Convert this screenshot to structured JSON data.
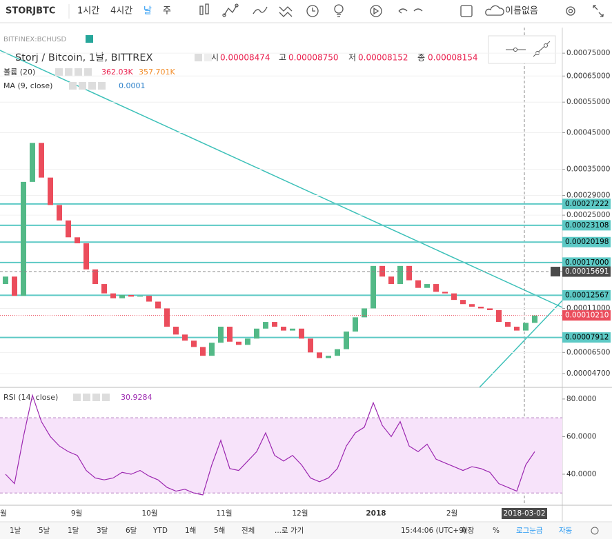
{
  "toolbar": {
    "symbol": "STORJBTC",
    "intervals": [
      "1시간",
      "4시간",
      "날",
      "주"
    ],
    "layout_name": "이름없음"
  },
  "chart": {
    "type": "candlestick",
    "compare_symbol": "BITFINEX:BCHUSD",
    "legend": {
      "title": "Storj / Bitcoin, 1날, BITTREX",
      "open_label": "시",
      "open": {
        "value": 8.474e-05,
        "label": "0.00008474"
      },
      "high_label": "고",
      "high": {
        "value": 8.75e-05,
        "label": "0.00008750"
      },
      "low_label": "저",
      "low": {
        "value": 8.152e-05,
        "label": "0.00008152"
      },
      "close_label": "종",
      "close": {
        "value": 8.154e-05,
        "label": "0.00008154"
      }
    },
    "volume": {
      "name": "볼륨 (20)",
      "value": {
        "value": 362030,
        "label": "362.03K"
      },
      "ma": {
        "value": 357701,
        "label": "357.701K"
      }
    },
    "ma": {
      "name": "MA (9, close)",
      "value": 0.0001
    },
    "open": [
      0.00014,
      0.00015,
      0.000125,
      0.00032,
      0.00042,
      0.00033,
      0.00027,
      0.00024,
      0.00021,
      0.0002,
      0.00016,
      0.00014,
      0.000128,
      0.000122,
      0.000126,
      0.000124,
      0.000125,
      0.000118,
      0.00011,
      9e-05,
      8.2e-05,
      7.6e-05,
      7e-05,
      6.2e-05,
      7.4e-05,
      9e-05,
      7.5e-05,
      7.2e-05,
      7.8e-05,
      8.8e-05,
      9.5e-05,
      9e-05,
      8.6e-05,
      8.8e-05,
      7.8e-05,
      6.5e-05,
      6e-05,
      6.2e-05,
      6.8e-05,
      8.5e-05,
      0.0001,
      0.00011,
      0.000165,
      0.00015,
      0.00014,
      0.000165,
      0.000145,
      0.000135,
      0.00014,
      0.00013,
      0.000128,
      0.00012,
      0.000115,
      0.000112,
      0.00011,
      0.000108,
      9.5e-05,
      9e-05,
      8.6e-05,
      9.4e-05
    ],
    "close": [
      0.00015,
      0.000125,
      0.00032,
      0.00042,
      0.00033,
      0.00027,
      0.00024,
      0.00021,
      0.0002,
      0.00016,
      0.00014,
      0.000128,
      0.000122,
      0.000126,
      0.000124,
      0.000125,
      0.000118,
      0.00011,
      9e-05,
      8.2e-05,
      7.6e-05,
      7e-05,
      6.2e-05,
      7.4e-05,
      9e-05,
      7.5e-05,
      7.2e-05,
      7.8e-05,
      8.8e-05,
      9.5e-05,
      9e-05,
      8.6e-05,
      8.8e-05,
      7.8e-05,
      6.5e-05,
      6e-05,
      6.2e-05,
      6.8e-05,
      8.5e-05,
      0.0001,
      0.00011,
      0.000165,
      0.00015,
      0.00014,
      0.000165,
      0.000145,
      0.000135,
      0.00014,
      0.00013,
      0.000128,
      0.00012,
      0.000115,
      0.000112,
      0.00011,
      0.000108,
      9.5e-05,
      9e-05,
      8.6e-05,
      9.4e-05,
      0.000102
    ],
    "ylim": [
      3.73e-05,
      0.000878
    ],
    "yticks": [
      {
        "value": 0.00075,
        "label": "0.00075000"
      },
      {
        "value": 0.00065,
        "label": "0.00065000"
      },
      {
        "value": 0.00055,
        "label": "0.00055000"
      },
      {
        "value": 0.00045,
        "label": "0.00045000"
      },
      {
        "value": 0.00035,
        "label": "0.00035000"
      },
      {
        "value": 0.00029,
        "label": "0.00029000"
      },
      {
        "value": 0.00025,
        "label": "0.00025000"
      },
      {
        "value": 0.00011,
        "label": "0.00011000"
      },
      {
        "value": 6.5e-05,
        "label": "0.00006500"
      },
      {
        "value": 4.7e-05,
        "label": "0.00004700"
      }
    ],
    "levels": [
      {
        "value": 0.00027222,
        "label": "0.00027222"
      },
      {
        "value": 0.00023108,
        "label": "0.00023108"
      },
      {
        "value": 0.00020198,
        "label": "0.00020198"
      },
      {
        "value": 0.00017,
        "label": "0.00017000"
      },
      {
        "value": 0.00012567,
        "label": "0.00012567"
      },
      {
        "value": 7.912e-05,
        "label": "0.00007912"
      }
    ],
    "crosshair_price": {
      "value": 0.00015691,
      "label": "0.00015691"
    },
    "last_price": {
      "value": 0.0001021,
      "label": "0.00010210"
    },
    "x_labels": [
      "월",
      "9월",
      "10월",
      "11월",
      "12월",
      "2018",
      "2월"
    ],
    "crosshair_date": "2018-03-02"
  },
  "rsi": {
    "name": "RSI (14, close)",
    "value": 30.9284,
    "values": [
      40,
      35,
      60,
      82,
      68,
      60,
      55,
      52,
      50,
      42,
      38,
      37,
      38,
      41,
      40,
      42,
      39,
      37,
      33,
      31,
      32,
      30,
      29,
      45,
      58,
      43,
      42,
      47,
      52,
      62,
      50,
      47,
      50,
      45,
      38,
      36,
      38,
      43,
      55,
      62,
      65,
      78,
      66,
      60,
      68,
      55,
      52,
      56,
      48,
      46,
      44,
      42,
      44,
      43,
      41,
      35,
      33,
      31,
      45,
      52
    ],
    "ylim": [
      24.6,
      85.1
    ],
    "yticks": [
      {
        "value": 80,
        "label": "80.0000"
      },
      {
        "value": 60,
        "label": "60.0000"
      },
      {
        "value": 40,
        "label": "40.0000"
      }
    ],
    "bands": [
      30,
      70
    ]
  },
  "bottom_bar": {
    "ranges": [
      "1날",
      "5날",
      "1달",
      "3달",
      "6달",
      "YTD",
      "1해",
      "5해",
      "전체",
      "...로 가기"
    ],
    "time": "15:44:06 (UTC+9)",
    "options": [
      "확장",
      "%",
      "로그눈금",
      "자동"
    ]
  }
}
